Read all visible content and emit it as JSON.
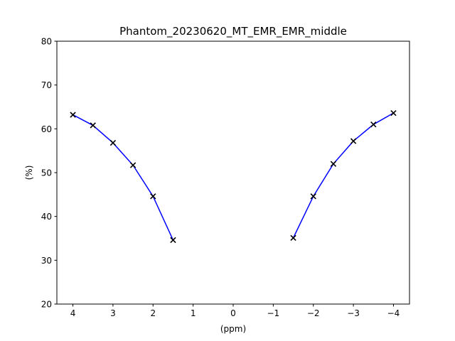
{
  "chart_data": {
    "type": "line",
    "title": "Phantom_20230620_MT_EMR_EMR_middle",
    "xlabel": "(ppm)",
    "ylabel": "(%)",
    "xlim": [
      4.4,
      -4.4
    ],
    "ylim": [
      20,
      80
    ],
    "x_axis_reversed": true,
    "grid": false,
    "x_ticks": [
      4,
      3,
      2,
      1,
      0,
      -1,
      -2,
      -3,
      -4
    ],
    "x_tick_labels": [
      "4",
      "3",
      "2",
      "1",
      "0",
      "−1",
      "−2",
      "−3",
      "−4"
    ],
    "y_ticks": [
      20,
      30,
      40,
      50,
      60,
      70,
      80
    ],
    "y_tick_labels": [
      "20",
      "30",
      "40",
      "50",
      "60",
      "70",
      "80"
    ],
    "line_color": "#0000ff",
    "marker_color": "#000000",
    "marker": "x",
    "series": [
      {
        "x": [
          4,
          3.5,
          3,
          2.5,
          2,
          1.5
        ],
        "y": [
          63.2,
          60.8,
          56.8,
          51.7,
          44.6,
          34.6
        ]
      },
      {
        "x": [
          -1.5,
          -2,
          -2.5,
          -3,
          -3.5,
          -4
        ],
        "y": [
          35.1,
          44.6,
          52.0,
          57.2,
          61.0,
          63.6
        ]
      }
    ]
  }
}
